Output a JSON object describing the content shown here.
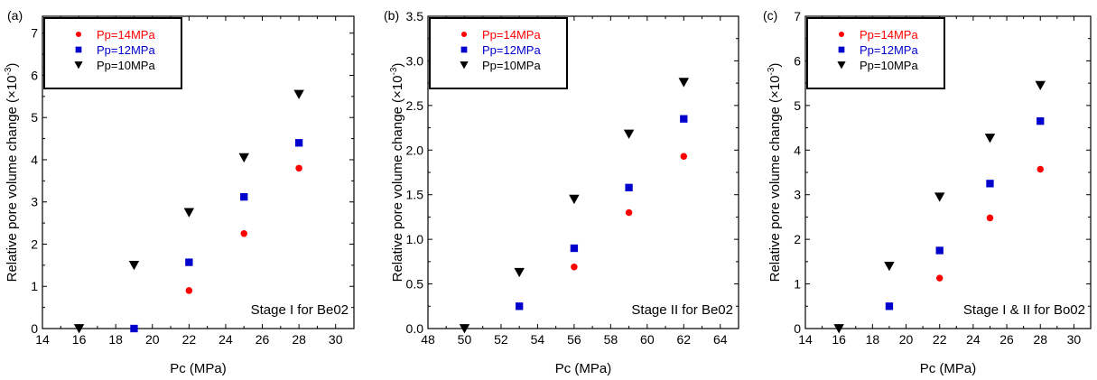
{
  "chart_data": [
    {
      "type": "scatter",
      "panel_label": "(a)",
      "xlabel": "Pc (MPa)",
      "ylabel": "Relative pore volume change (×10",
      "ylabel_exp": "-3",
      "ylabel_close": ")",
      "annotation": "Stage I for Be02",
      "xlim": [
        14,
        31
      ],
      "ylim": [
        0,
        7.4
      ],
      "xticks": [
        14,
        16,
        18,
        20,
        22,
        24,
        26,
        28,
        30
      ],
      "yticks": [
        0,
        1,
        2,
        3,
        4,
        5,
        6,
        7
      ],
      "ytick_labels": [
        "0",
        "1",
        "2",
        "3",
        "4",
        "5",
        "6",
        "7"
      ],
      "legend_position": "top-left",
      "series": [
        {
          "name": "Pp=14MPa",
          "marker": "circle",
          "color": "#ff0000",
          "x": [
            22,
            25,
            28
          ],
          "y": [
            0.9,
            2.25,
            3.8
          ]
        },
        {
          "name": "Pp=12MPa",
          "marker": "square",
          "color": "#0000cc",
          "x": [
            19,
            22,
            25,
            28
          ],
          "y": [
            0.0,
            1.57,
            3.12,
            4.4
          ]
        },
        {
          "name": "Pp=10MPa",
          "marker": "triangle-down",
          "color": "#000000",
          "x": [
            16,
            19,
            22,
            25,
            28
          ],
          "y": [
            0.0,
            1.5,
            2.75,
            4.05,
            5.55
          ]
        }
      ]
    },
    {
      "type": "scatter",
      "panel_label": "(b)",
      "xlabel": "Pc (MPa)",
      "ylabel": "Relative pore volume change (×10",
      "ylabel_exp": "-3",
      "ylabel_close": ")",
      "annotation": "Stage II for Be02",
      "xlim": [
        48,
        65
      ],
      "ylim": [
        0,
        3.5
      ],
      "xticks": [
        48,
        50,
        52,
        54,
        56,
        58,
        60,
        62,
        64
      ],
      "yticks": [
        0,
        0.5,
        1,
        1.5,
        2,
        2.5,
        3,
        3.5
      ],
      "ytick_labels": [
        "0.0",
        "0.5",
        "1.0",
        "1.5",
        "2.0",
        "2.5",
        "3.0",
        "3.5"
      ],
      "legend_position": "top-left",
      "series": [
        {
          "name": "Pp=14MPa",
          "marker": "circle",
          "color": "#ff0000",
          "x": [
            56,
            59,
            62
          ],
          "y": [
            0.69,
            1.3,
            1.93
          ]
        },
        {
          "name": "Pp=12MPa",
          "marker": "square",
          "color": "#0000cc",
          "x": [
            53,
            56,
            59,
            62
          ],
          "y": [
            0.25,
            0.9,
            1.58,
            2.35
          ]
        },
        {
          "name": "Pp=10MPa",
          "marker": "triangle-down",
          "color": "#000000",
          "x": [
            50,
            53,
            56,
            59,
            62
          ],
          "y": [
            0.0,
            0.63,
            1.45,
            2.18,
            2.76
          ]
        }
      ]
    },
    {
      "type": "scatter",
      "panel_label": "(c)",
      "xlabel": "Pc (MPa)",
      "ylabel": "Relative pore volume change (×10",
      "ylabel_exp": "-3",
      "ylabel_close": ")",
      "annotation": "Stage I & II for Bo02",
      "xlim": [
        14,
        31
      ],
      "ylim": [
        0,
        7
      ],
      "xticks": [
        14,
        16,
        18,
        20,
        22,
        24,
        26,
        28,
        30
      ],
      "yticks": [
        0,
        1,
        2,
        3,
        4,
        5,
        6,
        7
      ],
      "ytick_labels": [
        "0",
        "1",
        "2",
        "3",
        "4",
        "5",
        "6",
        "7"
      ],
      "legend_position": "top-left",
      "series": [
        {
          "name": "Pp=14MPa",
          "marker": "circle",
          "color": "#ff0000",
          "x": [
            22,
            25,
            28
          ],
          "y": [
            1.13,
            2.48,
            3.57
          ]
        },
        {
          "name": "Pp=12MPa",
          "marker": "square",
          "color": "#0000cc",
          "x": [
            19,
            22,
            25,
            28
          ],
          "y": [
            0.5,
            1.75,
            3.25,
            4.65
          ]
        },
        {
          "name": "Pp=10MPa",
          "marker": "triangle-down",
          "color": "#000000",
          "x": [
            16,
            19,
            22,
            25,
            28
          ],
          "y": [
            0.0,
            1.4,
            2.95,
            4.27,
            5.45
          ]
        }
      ]
    }
  ]
}
